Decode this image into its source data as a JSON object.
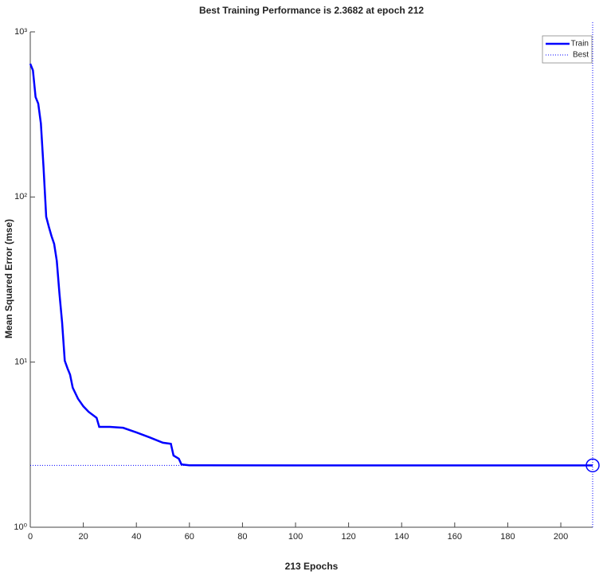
{
  "chart_data": {
    "type": "line",
    "title": "Best Training Performance is 2.3682 at epoch 212",
    "xlabel": "213 Epochs",
    "ylabel": "Mean Squared Error  (mse)",
    "xlim": [
      0,
      212
    ],
    "xticks": [
      0,
      20,
      40,
      60,
      80,
      100,
      120,
      140,
      160,
      180,
      200
    ],
    "ylim": [
      1,
      1000
    ],
    "log_y": true,
    "yticks": [
      {
        "value": 1,
        "label": "10⁰"
      },
      {
        "value": 10,
        "label": "10¹"
      },
      {
        "value": 100,
        "label": "10²"
      },
      {
        "value": 1000,
        "label": "10³"
      }
    ],
    "legend": "top-right",
    "series": [
      {
        "name": "Train",
        "color": "#0000ff",
        "style": "solid",
        "x": [
          0,
          1,
          2,
          3,
          4,
          5,
          6,
          7,
          8,
          9,
          10,
          11,
          12,
          13,
          14,
          15,
          16,
          18,
          20,
          22,
          25,
          26,
          30,
          35,
          40,
          45,
          50,
          53,
          54,
          56,
          57,
          60,
          100,
          150,
          212
        ],
        "values": [
          641,
          585,
          403,
          368,
          279,
          151,
          76,
          66,
          58,
          52,
          41,
          26,
          17.4,
          10.2,
          9.2,
          8.4,
          7.0,
          6.0,
          5.4,
          5.0,
          4.6,
          4.05,
          4.05,
          4.0,
          3.75,
          3.5,
          3.25,
          3.2,
          2.72,
          2.6,
          2.4,
          2.37,
          2.3682,
          2.3682,
          2.3682
        ]
      },
      {
        "name": "Best",
        "color": "#0000ff",
        "style": "dotted",
        "x": [
          0,
          212
        ],
        "values": [
          2.3682,
          2.3682
        ]
      }
    ]
  }
}
